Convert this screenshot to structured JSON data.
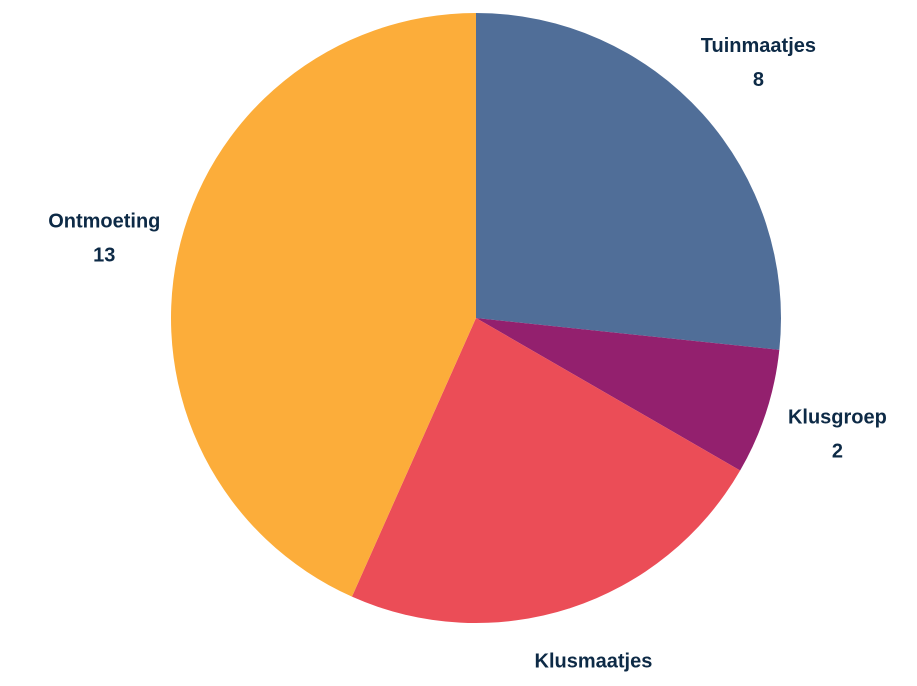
{
  "chart_data": {
    "type": "pie",
    "categories": [
      "Tuinmaatjes",
      "Klusgroep",
      "Klusmaatjes",
      "Ontmoeting"
    ],
    "values": [
      8,
      2,
      7,
      13
    ],
    "colors": [
      "#506e98",
      "#93206e",
      "#eb4d57",
      "#fcad3a"
    ]
  }
}
